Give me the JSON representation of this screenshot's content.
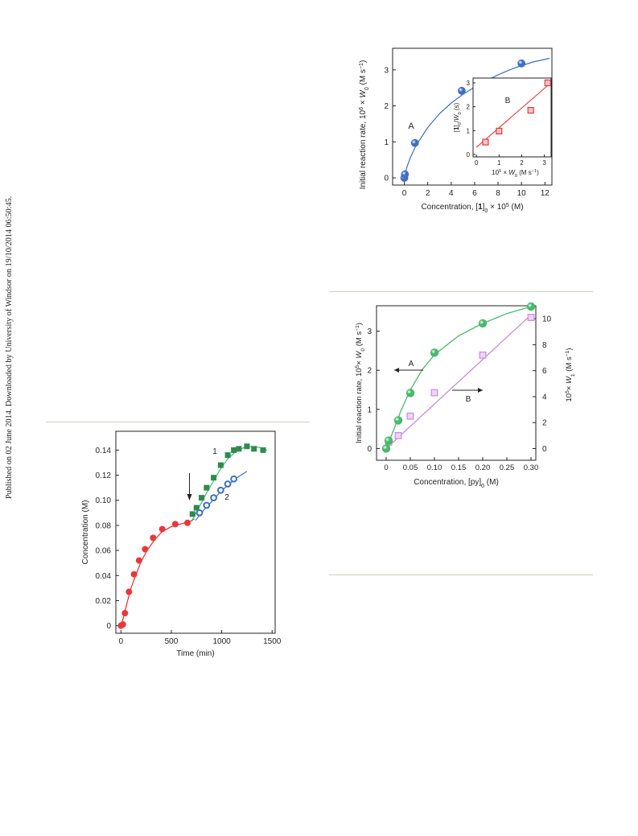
{
  "watermark": "Published on 02 June 2014. Downloaded by University of Windsor on 19/10/2014 06:50:45.",
  "colors": {
    "blue": "#3d6fc4",
    "red": "#e8383a",
    "green": "#2e8a4e",
    "lightgreen": "#47b96a",
    "magenta": "#c98ad6",
    "rule": "#cfcfc0"
  },
  "chart_data": [
    {
      "id": "fig_top_right",
      "type": "scatter",
      "xlabel_parts": [
        "Concentration, [",
        "1",
        "]",
        "0",
        " × 10",
        "5",
        " (M)"
      ],
      "ylabel_parts": [
        "Initial reaction rate, 10",
        "6",
        " × ",
        "W",
        "0",
        " (M s",
        "−1",
        ")"
      ],
      "xlim": [
        -1,
        12.6
      ],
      "ylim": [
        -0.2,
        3.6
      ],
      "xticks": [
        "0",
        "2",
        "4",
        "6",
        "8",
        "10",
        "12"
      ],
      "yticks": [
        "0",
        "1",
        "2",
        "3"
      ],
      "series": [
        {
          "name": "A",
          "x": [
            0.0,
            0.05,
            0.9,
            4.9,
            10.0
          ],
          "y": [
            0.0,
            0.1,
            0.97,
            2.42,
            3.18
          ]
        }
      ],
      "fit": {
        "x": [
          0.0,
          0.2,
          0.5,
          1,
          2,
          3,
          4,
          5,
          6,
          7,
          8,
          9,
          10,
          11,
          12.4
        ],
        "y": [
          0.0,
          0.28,
          0.55,
          0.9,
          1.4,
          1.78,
          2.08,
          2.32,
          2.52,
          2.7,
          2.86,
          3.0,
          3.12,
          3.22,
          3.32
        ]
      },
      "annotations": [
        "A"
      ],
      "inset": {
        "label": "B",
        "xlabel_parts": [
          "10",
          "5",
          " × ",
          "W",
          "0",
          " (M s",
          "−1",
          ")"
        ],
        "ylabel_parts": [
          "[",
          "1",
          "]",
          "0",
          "/",
          "W",
          "0",
          " (s)"
        ],
        "xlim": [
          -0.15,
          3.3
        ],
        "ylim": [
          -0.1,
          3.2
        ],
        "xticks": [
          "0",
          "1",
          "2",
          "3"
        ],
        "yticks": [
          "0",
          "1",
          "2",
          "3"
        ],
        "x": [
          0.4,
          1.0,
          2.4,
          3.15
        ],
        "y": [
          0.52,
          0.98,
          1.85,
          3.0
        ],
        "fit": {
          "x": [
            0.0,
            3.2
          ],
          "y": [
            0.3,
            2.93
          ]
        }
      }
    },
    {
      "id": "fig_mid_right",
      "type": "scatter",
      "xlabel_parts": [
        "Concentration, [py]",
        "0",
        " (M)"
      ],
      "ylabel_parts": [
        "Initial reaction rate, 10",
        "5",
        "× ",
        "W",
        "0",
        " (M s",
        "−1",
        ")"
      ],
      "y2label_parts": [
        "10",
        "5",
        "× ",
        "W",
        "1",
        " (M s",
        "−1",
        ")"
      ],
      "xlim": [
        -0.02,
        0.31
      ],
      "ylim": [
        -0.3,
        3.65
      ],
      "y2lim": [
        -0.9,
        11.0
      ],
      "xticks": [
        "0",
        "0.05",
        "0.10",
        "0.15",
        "0.20",
        "0.25",
        "0.30"
      ],
      "yticks": [
        "0",
        "1",
        "2",
        "3"
      ],
      "y2ticks": [
        "0",
        "2",
        "4",
        "6",
        "8",
        "10"
      ],
      "series": [
        {
          "name": "A",
          "axis": "left",
          "x": [
            0.0,
            0.005,
            0.025,
            0.05,
            0.1,
            0.2,
            0.3
          ],
          "y": [
            0.0,
            0.2,
            0.72,
            1.42,
            2.45,
            3.2,
            3.63
          ]
        },
        {
          "name": "B",
          "axis": "right",
          "x": [
            0.005,
            0.025,
            0.05,
            0.1,
            0.2,
            0.3
          ],
          "y": [
            0.5,
            1.0,
            2.5,
            4.3,
            7.2,
            10.1
          ]
        }
      ],
      "fitA": {
        "x": [
          0.0,
          0.01,
          0.02,
          0.03,
          0.05,
          0.075,
          0.1,
          0.15,
          0.2,
          0.25,
          0.3
        ],
        "y": [
          0.0,
          0.3,
          0.62,
          0.95,
          1.5,
          2.02,
          2.4,
          2.88,
          3.2,
          3.45,
          3.63
        ]
      },
      "fitB": {
        "x": [
          0.0,
          0.3
        ],
        "y": [
          0.0,
          10.3
        ]
      },
      "annotations": [
        "A",
        "B"
      ]
    },
    {
      "id": "fig_bottom_left",
      "type": "scatter",
      "xlabel": "Time (min)",
      "ylabel": "Concentration  (M)",
      "xlim": [
        -50,
        1530
      ],
      "ylim": [
        -0.006,
        0.155
      ],
      "xticks": [
        "0",
        "500",
        "1000",
        "1500"
      ],
      "yticks": [
        "0",
        "0.02",
        "0.04",
        "0.06",
        "0.08",
        "0.10",
        "0.12",
        "0.14"
      ],
      "series": [
        {
          "name": "base",
          "x": [
            0,
            20,
            40,
            80,
            130,
            180,
            240,
            320,
            410,
            540,
            660
          ],
          "y": [
            0,
            0.001,
            0.01,
            0.027,
            0.041,
            0.052,
            0.061,
            0.07,
            0.077,
            0.081,
            0.082
          ]
        },
        {
          "name": "1",
          "x": [
            710,
            750,
            800,
            850,
            920,
            990,
            1060,
            1120,
            1170,
            1250,
            1320,
            1410
          ],
          "y": [
            0.089,
            0.094,
            0.102,
            0.11,
            0.118,
            0.128,
            0.136,
            0.14,
            0.141,
            0.143,
            0.141,
            0.14
          ]
        },
        {
          "name": "2",
          "x": [
            780,
            850,
            920,
            990,
            1060,
            1120
          ],
          "y": [
            0.09,
            0.096,
            0.102,
            0.108,
            0.113,
            0.117
          ]
        }
      ],
      "fitBase": {
        "x": [
          0,
          30,
          60,
          100,
          150,
          200,
          260,
          330,
          410,
          500,
          590,
          680,
          730
        ],
        "y": [
          0,
          0.008,
          0.018,
          0.03,
          0.041,
          0.051,
          0.06,
          0.068,
          0.075,
          0.079,
          0.081,
          0.083,
          0.085
        ]
      },
      "fit1": {
        "x": [
          700,
          760,
          830,
          900,
          980,
          1060,
          1140,
          1220,
          1300,
          1380,
          1450
        ],
        "y": [
          0.083,
          0.092,
          0.103,
          0.113,
          0.124,
          0.133,
          0.139,
          0.142,
          0.143,
          0.142,
          0.14
        ]
      },
      "fit2": {
        "x": [
          740,
          820,
          900,
          980,
          1060,
          1150,
          1250
        ],
        "y": [
          0.084,
          0.092,
          0.099,
          0.106,
          0.112,
          0.118,
          0.123
        ]
      },
      "annotations": [
        "1",
        "2"
      ],
      "arrow_x": 680
    }
  ]
}
